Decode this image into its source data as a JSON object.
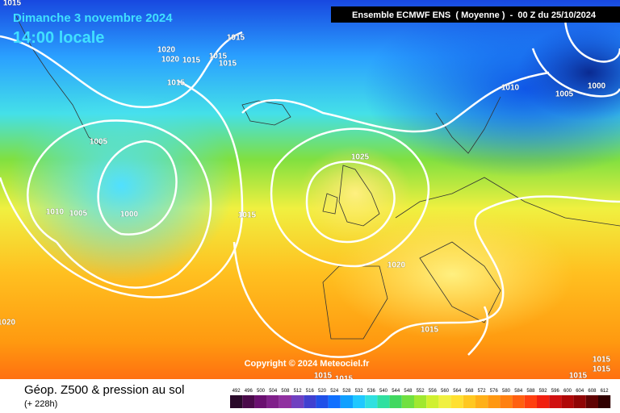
{
  "header": {
    "date": "Dimanche 3 novembre 2024",
    "time": "14:00 locale",
    "model": "Ensemble ECMWF ENS  ( Moyenne )  -  00 Z du 25/10/2024"
  },
  "copyright": "Copyright © 2024 Meteociel.fr",
  "footer": {
    "title": "Géop. Z500 & pression au sol",
    "lead": "(+ 228h)"
  },
  "isobar_labels": [
    1015,
    1015,
    1020,
    1020,
    1015,
    1015,
    1015,
    1015,
    1010,
    1005,
    1000,
    1005,
    1025,
    1010,
    1005,
    1000,
    1015,
    1020,
    1015,
    1020,
    1015,
    1015,
    1015,
    1015,
    1015
  ],
  "scale": [
    492,
    496,
    500,
    504,
    508,
    512,
    516,
    520,
    524,
    528,
    532,
    536,
    540,
    544,
    548,
    552,
    556,
    560,
    564,
    568,
    572,
    576,
    580,
    584,
    588,
    592,
    596,
    600,
    604,
    608,
    612
  ]
}
